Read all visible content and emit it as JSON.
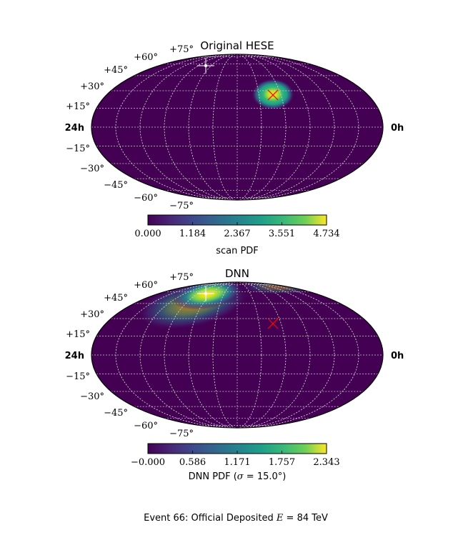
{
  "chart_data": [
    {
      "type": "heatmap",
      "projection": "Mollweide (aitoff-like ellipse)",
      "title": "Original HESE",
      "ra_labels": {
        "left": "24h",
        "right": "0h"
      },
      "dec_tick_labels": [
        "+75°",
        "+60°",
        "+45°",
        "+30°",
        "+15°",
        "−15°",
        "−30°",
        "−45°",
        "−60°",
        "−75°"
      ],
      "grid": true,
      "colormap": "viridis",
      "hotspot": {
        "ra_frac": 0.62,
        "dec_deg": 25,
        "label": "scan PDF peak"
      },
      "markers": [
        {
          "type": "cross-white",
          "ra_frac": 0.4,
          "dec_deg": 68
        },
        {
          "type": "x-red",
          "ra_frac": 0.62,
          "dec_deg": 25
        }
      ],
      "colorbar": {
        "label": "scan PDF",
        "range": [
          0,
          4.734
        ],
        "ticks": [
          "0.000",
          "1.184",
          "2.367",
          "3.551",
          "4.734"
        ]
      }
    },
    {
      "type": "heatmap",
      "projection": "Mollweide (aitoff-like ellipse)",
      "title": "DNN",
      "ra_labels": {
        "left": "24h",
        "right": "0h"
      },
      "dec_tick_labels": [
        "+75°",
        "+60°",
        "+45°",
        "+30°",
        "+15°",
        "−15°",
        "−30°",
        "−45°",
        "−60°",
        "−75°"
      ],
      "grid": true,
      "colormap": "viridis",
      "markers": [
        {
          "type": "cross-white",
          "ra_frac": 0.4,
          "dec_deg": 53
        },
        {
          "type": "x-red",
          "ra_frac": 0.62,
          "dec_deg": 25
        }
      ],
      "colorbar": {
        "label_prefix": "DNN PDF (",
        "label_sigma": "σ",
        "label_suffix": " = 15.0°)",
        "range": [
          0,
          2.343
        ],
        "ticks": [
          "−0.000",
          "0.586",
          "1.171",
          "1.757",
          "2.343"
        ]
      }
    }
  ],
  "footer": {
    "prefix": "Event 66:  Official Deposited ",
    "var": "E",
    "suffix": " = 84 TeV"
  },
  "colors": {
    "background_fill": "#440154",
    "grid": "#d0d0d0",
    "red_marker": "#ff0000",
    "white_marker": "#ffffff"
  }
}
